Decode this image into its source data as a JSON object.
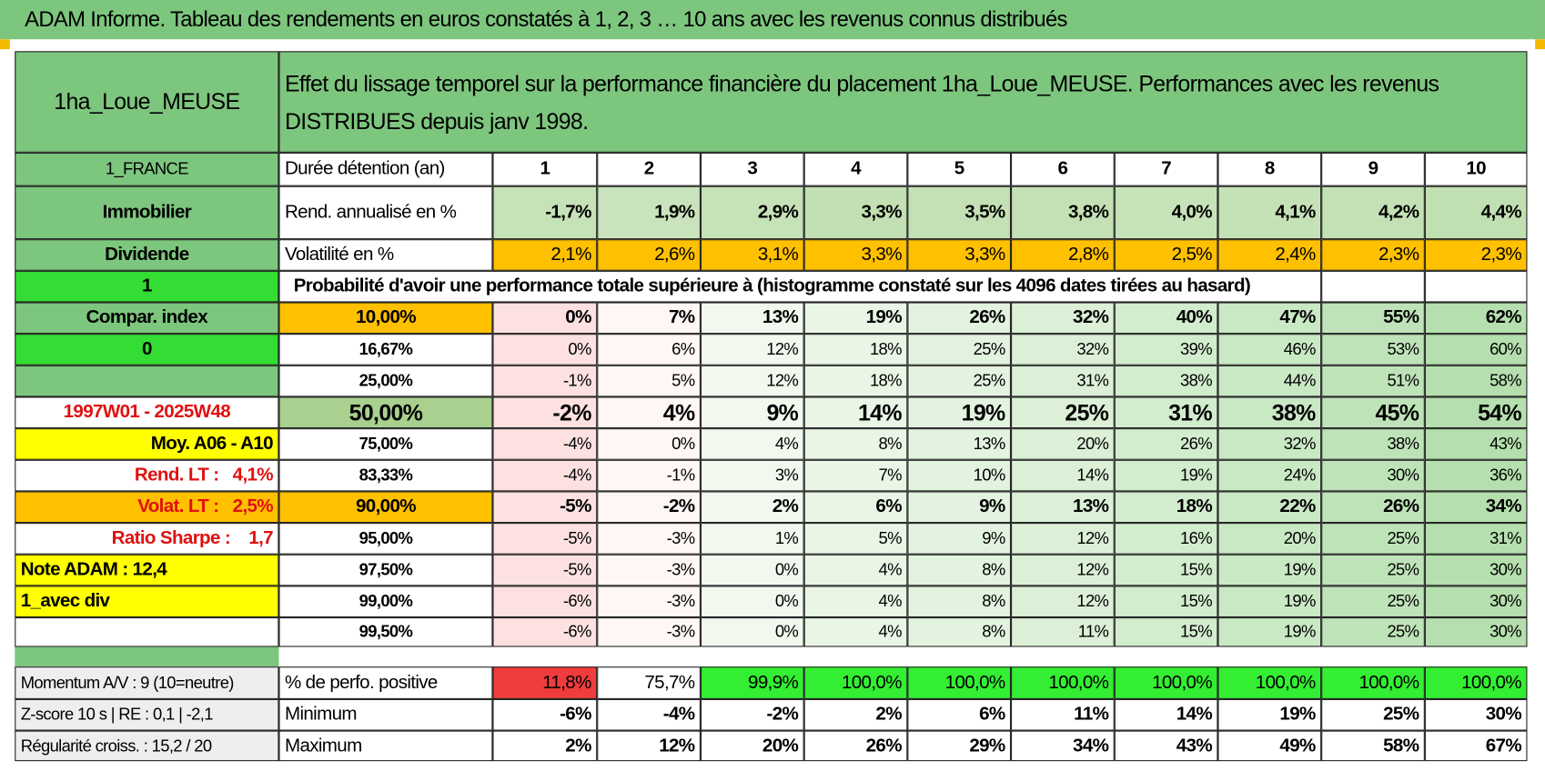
{
  "title": "ADAM Informe. Tableau des rendements en euros constatés à 1, 2, 3 … 10 ans avec les revenus connus distribués",
  "header": {
    "name": "1ha_Loue_MEUSE",
    "description": "Effet du lissage temporel sur la performance financière du placement 1ha_Loue_MEUSE. Performances avec les revenus DISTRIBUES depuis janv 1998."
  },
  "rows": [
    {
      "side": "1_FRANCE",
      "label": "Durée détention (an)",
      "cells": [
        "1",
        "2",
        "3",
        "4",
        "5",
        "6",
        "7",
        "8",
        "9",
        "10"
      ]
    },
    {
      "side": "Immobilier",
      "label": "Rend. annualisé en %",
      "cells": [
        "-1,7%",
        "1,9%",
        "2,9%",
        "3,3%",
        "3,5%",
        "3,8%",
        "4,0%",
        "4,1%",
        "4,2%",
        "4,4%"
      ]
    },
    {
      "side": "Dividende",
      "label": "Volatilité en %",
      "cells": [
        "2,1%",
        "2,6%",
        "3,1%",
        "3,3%",
        "3,3%",
        "2,8%",
        "2,5%",
        "2,4%",
        "2,3%",
        "2,3%"
      ]
    },
    {
      "side": "1",
      "label": "Probabilité d'avoir une performance totale supérieure à (histogramme constaté sur les 4096 dates tirées au hasard)"
    },
    {
      "side": "Compar. index",
      "label": "10,00%",
      "cells": [
        "0%",
        "7%",
        "13%",
        "19%",
        "26%",
        "32%",
        "40%",
        "47%",
        "55%",
        "62%"
      ]
    },
    {
      "side": "0",
      "label": "16,67%",
      "cells": [
        "0%",
        "6%",
        "12%",
        "18%",
        "25%",
        "32%",
        "39%",
        "46%",
        "53%",
        "60%"
      ]
    },
    {
      "side": null,
      "label": "25,00%",
      "cells": [
        "-1%",
        "5%",
        "12%",
        "18%",
        "25%",
        "31%",
        "38%",
        "44%",
        "51%",
        "58%"
      ]
    },
    {
      "side": "1997W01 - 2025W48",
      "label": "50,00%",
      "cells": [
        "-2%",
        "4%",
        "9%",
        "14%",
        "19%",
        "25%",
        "31%",
        "38%",
        "45%",
        "54%"
      ]
    },
    {
      "side": "Moy. A06 - A10",
      "label": "75,00%",
      "cells": [
        "-4%",
        "0%",
        "4%",
        "8%",
        "13%",
        "20%",
        "26%",
        "32%",
        "38%",
        "43%"
      ]
    },
    {
      "side": "Rend. LT :   4,1%",
      "label": "83,33%",
      "cells": [
        "-4%",
        "-1%",
        "3%",
        "7%",
        "10%",
        "14%",
        "19%",
        "24%",
        "30%",
        "36%"
      ]
    },
    {
      "side": "Volat. LT :   2,5%",
      "label": "90,00%",
      "cells": [
        "-5%",
        "-2%",
        "2%",
        "6%",
        "9%",
        "13%",
        "18%",
        "22%",
        "26%",
        "34%"
      ]
    },
    {
      "side": "Ratio Sharpe :    1,7",
      "label": "95,00%",
      "cells": [
        "-5%",
        "-3%",
        "1%",
        "5%",
        "9%",
        "12%",
        "16%",
        "20%",
        "25%",
        "31%"
      ]
    },
    {
      "side": "Note ADAM : 12,4",
      "label": "97,50%",
      "cells": [
        "-5%",
        "-3%",
        "0%",
        "4%",
        "8%",
        "12%",
        "15%",
        "19%",
        "25%",
        "30%"
      ]
    },
    {
      "side": "1_avec div",
      "label": "99,00%",
      "cells": [
        "-6%",
        "-3%",
        "0%",
        "4%",
        "8%",
        "12%",
        "15%",
        "19%",
        "25%",
        "30%"
      ]
    },
    {
      "side": null,
      "label": "99,50%",
      "cells": [
        "-6%",
        "-3%",
        "0%",
        "4%",
        "8%",
        "11%",
        "15%",
        "19%",
        "25%",
        "30%"
      ]
    },
    {
      "side": "Momentum A/V : 9 (10=neutre)",
      "label": "% de perfo. positive",
      "cells": [
        "11,8%",
        "75,7%",
        "99,9%",
        "100,0%",
        "100,0%",
        "100,0%",
        "100,0%",
        "100,0%",
        "100,0%",
        "100,0%"
      ]
    },
    {
      "side": "Z-score 10 s | RE : 0,1 | -2,1",
      "label": "Minimum",
      "cells": [
        "-6%",
        "-4%",
        "-2%",
        "2%",
        "6%",
        "11%",
        "14%",
        "19%",
        "25%",
        "30%"
      ]
    },
    {
      "side": "Régularité croiss. : 15,2 / 20",
      "label": "Maximum",
      "cells": [
        "2%",
        "12%",
        "20%",
        "26%",
        "29%",
        "34%",
        "43%",
        "49%",
        "58%",
        "67%"
      ]
    }
  ]
}
